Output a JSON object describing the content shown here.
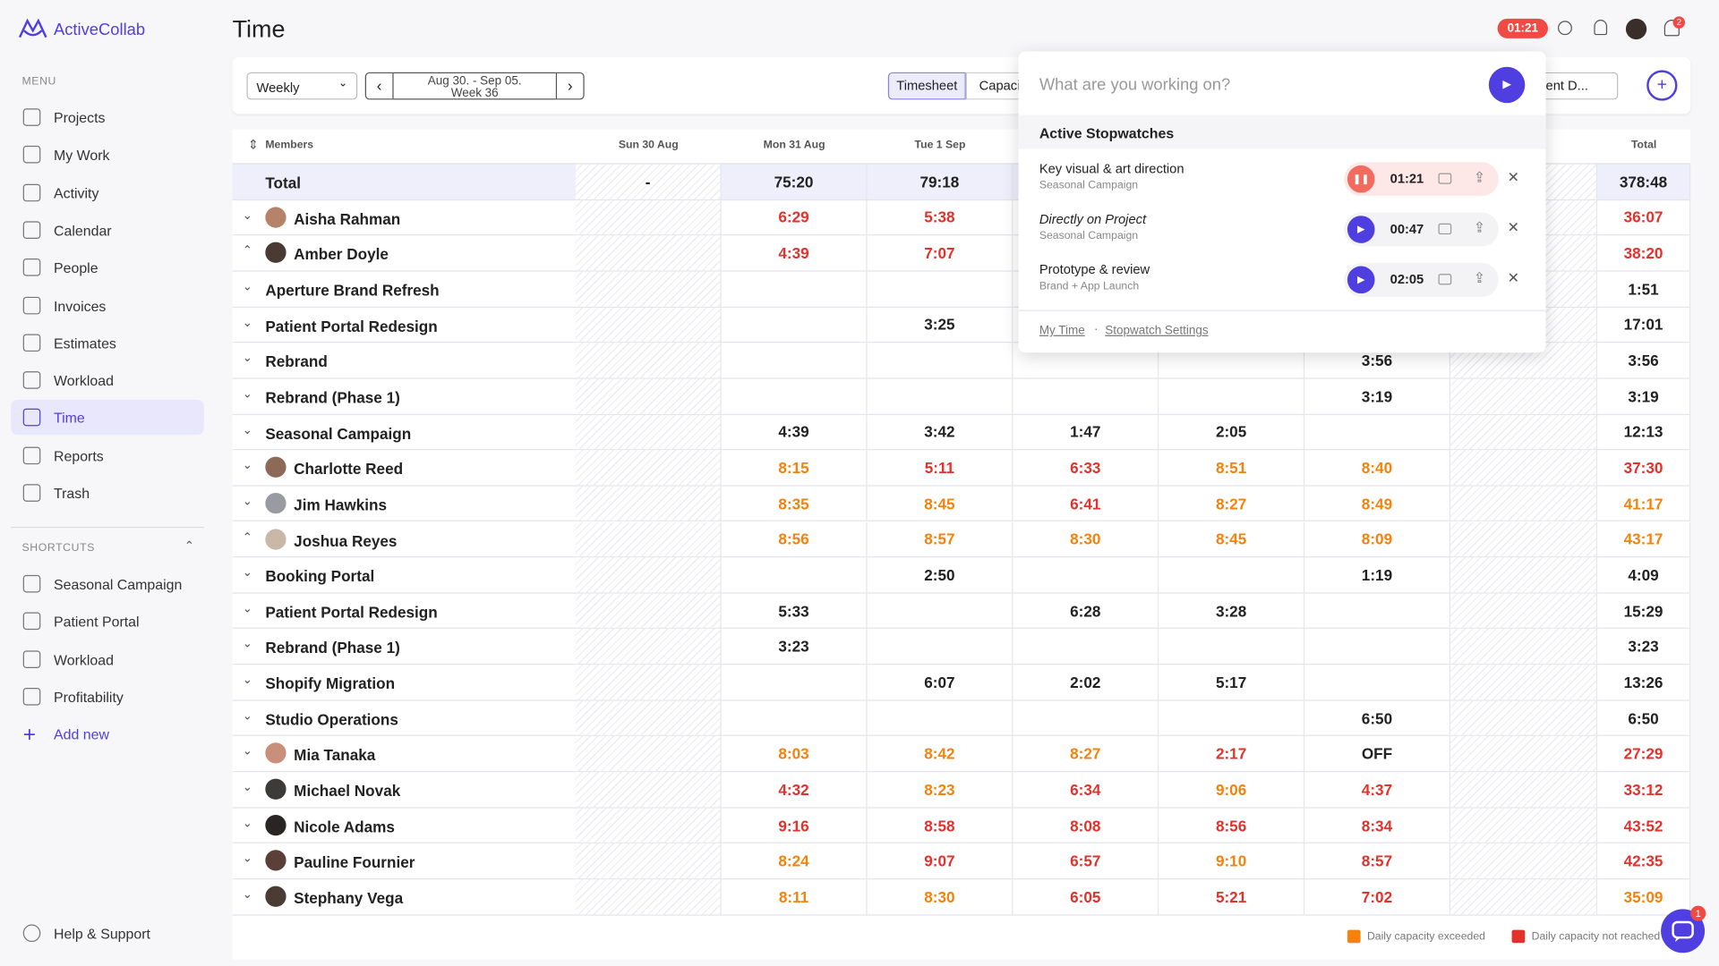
{
  "sidebar": {
    "brand": "ActiveCollab",
    "menu_label": "MENU",
    "menu": [
      "Projects",
      "My Work",
      "Activity",
      "Calendar",
      "People",
      "Invoices",
      "Estimates",
      "Workload",
      "Time",
      "Reports",
      "Trash"
    ],
    "active_index": 8,
    "shortcuts_label": "SHORTCUTS",
    "shortcuts": [
      "Seasonal Campaign",
      "Patient Portal",
      "Workload",
      "Profitability"
    ],
    "add_new": "Add new",
    "help": "Help & Support"
  },
  "header": {
    "title": "Time",
    "timer": "01:21",
    "notifications": "2"
  },
  "toolbar": {
    "period": "Weekly",
    "range": "Aug 30. - Sep 05.",
    "week": "Week 36",
    "tabs": [
      "Timesheet",
      "Capacity"
    ],
    "active_tab": 0,
    "filter": "ent D..."
  },
  "table": {
    "columns": [
      "Members",
      "Sun 30 Aug",
      "Mon 31 Aug",
      "Tue 1 Sep",
      null,
      null,
      null,
      null,
      "Total"
    ],
    "weekend": [
      1,
      7
    ],
    "rows": [
      {
        "kind": "total",
        "name": "Total",
        "cells": [
          "-",
          "75:20",
          "79:18",
          null,
          null,
          null,
          null,
          "378:48"
        ],
        "status": [
          null,
          null,
          null,
          null,
          null,
          null,
          null,
          null
        ]
      },
      {
        "kind": "member",
        "name": "Aisha Rahman",
        "expanded": false,
        "avatar": "#b5836a",
        "cells": [
          null,
          "6:29",
          "5:38",
          null,
          null,
          null,
          null,
          "36:07"
        ],
        "status": [
          null,
          1,
          1,
          null,
          null,
          null,
          null,
          1
        ]
      },
      {
        "kind": "member",
        "name": "Amber Doyle",
        "expanded": true,
        "avatar": "#4a3a34",
        "cells": [
          null,
          "4:39",
          "7:07",
          null,
          null,
          null,
          null,
          "38:20"
        ],
        "status": [
          null,
          1,
          1,
          null,
          null,
          null,
          null,
          1
        ]
      },
      {
        "kind": "project",
        "name": "Aperture Brand Refresh",
        "cells": [
          null,
          null,
          null,
          null,
          null,
          null,
          null,
          "1:51"
        ],
        "status": [
          null,
          null,
          null,
          null,
          null,
          null,
          null,
          null
        ]
      },
      {
        "kind": "project",
        "name": "Patient Portal Redesign",
        "cells": [
          null,
          null,
          "3:25",
          null,
          null,
          null,
          null,
          "17:01"
        ],
        "status": [
          null,
          null,
          null,
          null,
          null,
          null,
          null,
          null
        ]
      },
      {
        "kind": "project",
        "name": "Rebrand",
        "cells": [
          null,
          null,
          null,
          null,
          null,
          "3:56",
          null,
          "3:56"
        ],
        "status": [
          null,
          null,
          null,
          null,
          null,
          null,
          null,
          null
        ]
      },
      {
        "kind": "project",
        "name": "Rebrand (Phase 1)",
        "cells": [
          null,
          null,
          null,
          null,
          null,
          "3:19",
          null,
          "3:19"
        ],
        "status": [
          null,
          null,
          null,
          null,
          null,
          null,
          null,
          null
        ]
      },
      {
        "kind": "project",
        "name": "Seasonal Campaign",
        "cells": [
          null,
          "4:39",
          "3:42",
          "1:47",
          "2:05",
          null,
          null,
          "12:13"
        ],
        "status": [
          null,
          null,
          null,
          null,
          null,
          null,
          null,
          null
        ]
      },
      {
        "kind": "member",
        "name": "Charlotte Reed",
        "expanded": false,
        "avatar": "#8d6a58",
        "cells": [
          null,
          "8:15",
          "5:11",
          "6:33",
          "8:51",
          "8:40",
          null,
          "37:30"
        ],
        "status": [
          null,
          0,
          1,
          1,
          0,
          0,
          null,
          1
        ]
      },
      {
        "kind": "member",
        "name": "Jim Hawkins",
        "expanded": false,
        "avatar": "#9a9aa2",
        "cells": [
          null,
          "8:35",
          "8:45",
          "6:41",
          "8:27",
          "8:49",
          null,
          "41:17"
        ],
        "status": [
          null,
          0,
          0,
          1,
          0,
          0,
          null,
          0
        ]
      },
      {
        "kind": "member",
        "name": "Joshua Reyes",
        "expanded": true,
        "avatar": "#c9b8a8",
        "cells": [
          null,
          "8:56",
          "8:57",
          "8:30",
          "8:45",
          "8:09",
          null,
          "43:17"
        ],
        "status": [
          null,
          0,
          0,
          0,
          0,
          0,
          null,
          0
        ]
      },
      {
        "kind": "project",
        "name": "Booking Portal",
        "cells": [
          null,
          null,
          "2:50",
          null,
          null,
          "1:19",
          null,
          "4:09"
        ],
        "status": [
          null,
          null,
          null,
          null,
          null,
          null,
          null,
          null
        ]
      },
      {
        "kind": "project",
        "name": "Patient Portal Redesign",
        "cells": [
          null,
          "5:33",
          null,
          "6:28",
          "3:28",
          null,
          null,
          "15:29"
        ],
        "status": [
          null,
          null,
          null,
          null,
          null,
          null,
          null,
          null
        ]
      },
      {
        "kind": "project",
        "name": "Rebrand (Phase 1)",
        "cells": [
          null,
          "3:23",
          null,
          null,
          null,
          null,
          null,
          "3:23"
        ],
        "status": [
          null,
          null,
          null,
          null,
          null,
          null,
          null,
          null
        ]
      },
      {
        "kind": "project",
        "name": "Shopify Migration",
        "cells": [
          null,
          null,
          "6:07",
          "2:02",
          "5:17",
          null,
          null,
          "13:26"
        ],
        "status": [
          null,
          null,
          null,
          null,
          null,
          null,
          null,
          null
        ]
      },
      {
        "kind": "project",
        "name": "Studio Operations",
        "cells": [
          null,
          null,
          null,
          null,
          null,
          "6:50",
          null,
          "6:50"
        ],
        "status": [
          null,
          null,
          null,
          null,
          null,
          null,
          null,
          null
        ]
      },
      {
        "kind": "member",
        "name": "Mia Tanaka",
        "expanded": false,
        "avatar": "#c98f7a",
        "cells": [
          null,
          "8:03",
          "8:42",
          "8:27",
          "2:17",
          "OFF",
          null,
          "27:29"
        ],
        "status": [
          null,
          0,
          0,
          0,
          1,
          null,
          null,
          1
        ]
      },
      {
        "kind": "member",
        "name": "Michael Novak",
        "expanded": false,
        "avatar": "#3d3a3a",
        "cells": [
          null,
          "4:32",
          "8:23",
          "6:34",
          "9:06",
          "4:37",
          null,
          "33:12"
        ],
        "status": [
          null,
          1,
          0,
          1,
          0,
          1,
          null,
          1
        ]
      },
      {
        "kind": "member",
        "name": "Nicole Adams",
        "expanded": false,
        "avatar": "#2a2424",
        "cells": [
          null,
          "9:16",
          "8:58",
          "8:08",
          "8:56",
          "8:34",
          null,
          "43:52"
        ],
        "status": [
          null,
          1,
          1,
          1,
          1,
          1,
          null,
          1
        ]
      },
      {
        "kind": "member",
        "name": "Pauline Fournier",
        "expanded": false,
        "avatar": "#5a4038",
        "cells": [
          null,
          "8:24",
          "9:07",
          "6:57",
          "9:10",
          "8:57",
          null,
          "42:35"
        ],
        "status": [
          null,
          0,
          1,
          1,
          0,
          1,
          null,
          1
        ]
      },
      {
        "kind": "member",
        "name": "Stephany Vega",
        "expanded": false,
        "avatar": "#4b3b35",
        "cells": [
          null,
          "8:11",
          "8:30",
          "6:05",
          "5:21",
          "7:02",
          null,
          "35:09"
        ],
        "status": [
          null,
          0,
          0,
          1,
          1,
          1,
          null,
          0
        ]
      }
    ]
  },
  "stopwatch": {
    "placeholder": "What are you working on?",
    "title": "Active Stopwatches",
    "items": [
      {
        "name": "Key visual & art direction",
        "project": "Seasonal Campaign",
        "time": "01:21",
        "running": true,
        "italic": false
      },
      {
        "name": "Directly on Project",
        "project": "Seasonal Campaign",
        "time": "00:47",
        "running": false,
        "italic": true
      },
      {
        "name": "Prototype & review",
        "project": "Brand + App Launch",
        "time": "02:05",
        "running": false,
        "italic": false
      }
    ],
    "links": [
      "My Time",
      "Stopwatch Settings"
    ]
  },
  "legend": [
    {
      "label": "Daily capacity exceeded",
      "color": "#f5820d"
    },
    {
      "label": "Daily capacity not reached",
      "color": "#e3322b"
    }
  ],
  "chat_badge": "1"
}
